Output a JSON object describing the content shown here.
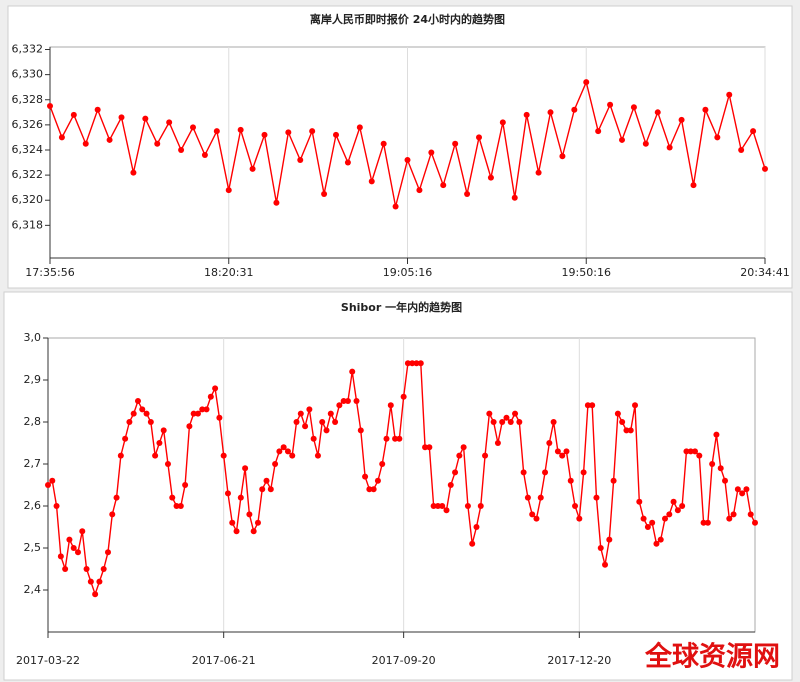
{
  "chart_data": [
    {
      "type": "line",
      "title": "离岸人民币即时报价 24小时内的趋势图",
      "categories": [
        "17:35:56",
        null,
        null,
        null,
        null,
        null,
        null,
        null,
        null,
        null,
        null,
        null,
        null,
        null,
        null,
        "18:20:31",
        null,
        null,
        null,
        null,
        null,
        null,
        null,
        null,
        null,
        null,
        null,
        null,
        null,
        null,
        "19:05:16",
        null,
        null,
        null,
        null,
        null,
        null,
        null,
        null,
        null,
        null,
        null,
        null,
        null,
        null,
        "19:50:16",
        null,
        null,
        null,
        null,
        null,
        null,
        null,
        null,
        null,
        null,
        null,
        null,
        null,
        null,
        "20:34:41"
      ],
      "series": [
        {
          "color": "#ff0000",
          "values": [
            6.3275,
            6.325,
            6.3268,
            6.3245,
            6.3272,
            6.3248,
            6.3266,
            6.3222,
            6.3265,
            6.3245,
            6.3262,
            6.324,
            6.3258,
            6.3236,
            6.3255,
            6.3208,
            6.3256,
            6.3225,
            6.3252,
            6.3198,
            6.3254,
            6.3232,
            6.3255,
            6.3205,
            6.3252,
            6.323,
            6.3258,
            6.3215,
            6.3245,
            6.3195,
            6.3232,
            6.3208,
            6.3238,
            6.3212,
            6.3245,
            6.3205,
            6.325,
            6.3218,
            6.3262,
            6.3202,
            6.3268,
            6.3222,
            6.327,
            6.3235,
            6.3272,
            6.3294,
            6.3255,
            6.3276,
            6.3248,
            6.3274,
            6.3245,
            6.327,
            6.3242,
            6.3264,
            6.3212,
            6.3272,
            6.325,
            6.3284,
            6.324,
            6.3255,
            6.3225
          ]
        }
      ],
      "ylim": [
        6.3154,
        6.3322
      ],
      "yticks": [
        {
          "value": 6.318,
          "label": "6,318"
        },
        {
          "value": 6.32,
          "label": "6,320"
        },
        {
          "value": 6.322,
          "label": "6,322"
        },
        {
          "value": 6.324,
          "label": "6,324"
        },
        {
          "value": 6.326,
          "label": "6,326"
        },
        {
          "value": 6.328,
          "label": "6,328"
        },
        {
          "value": 6.33,
          "label": "6,330"
        },
        {
          "value": 6.332,
          "label": "6,332"
        }
      ],
      "grid": "x"
    },
    {
      "type": "line",
      "title": "Shibor 一年内的趋势图",
      "categories": [
        "2017-03-22",
        null,
        null,
        null,
        null,
        null,
        null,
        null,
        null,
        null,
        null,
        null,
        null,
        null,
        null,
        null,
        null,
        null,
        null,
        null,
        null,
        null,
        null,
        null,
        null,
        null,
        null,
        null,
        null,
        null,
        null,
        null,
        null,
        null,
        null,
        null,
        null,
        null,
        null,
        null,
        null,
        "2017-06-21",
        null,
        null,
        null,
        null,
        null,
        null,
        null,
        null,
        null,
        null,
        null,
        null,
        null,
        null,
        null,
        null,
        null,
        null,
        null,
        null,
        null,
        null,
        null,
        null,
        null,
        null,
        null,
        null,
        null,
        null,
        null,
        null,
        null,
        null,
        null,
        null,
        null,
        null,
        null,
        null,
        null,
        "2017-09-20",
        null,
        null,
        null,
        null,
        null,
        null,
        null,
        null,
        null,
        null,
        null,
        null,
        null,
        null,
        null,
        null,
        null,
        null,
        null,
        null,
        null,
        null,
        null,
        null,
        null,
        null,
        null,
        null,
        null,
        null,
        null,
        null,
        null,
        null,
        null,
        null,
        null,
        null,
        null,
        null,
        "2017-12-20",
        null,
        null,
        null,
        null,
        null,
        null,
        null,
        null,
        null,
        null,
        null,
        null,
        null,
        null,
        null,
        null,
        null,
        null,
        null,
        null,
        null,
        null,
        null,
        null,
        null,
        null,
        null,
        null,
        null,
        null,
        null,
        null,
        null,
        null,
        null,
        null,
        null,
        null,
        null,
        null,
        null
      ],
      "series": [
        {
          "color": "#ff0000",
          "values": [
            2.65,
            2.66,
            2.6,
            2.48,
            2.45,
            2.52,
            2.5,
            2.49,
            2.54,
            2.45,
            2.42,
            2.39,
            2.42,
            2.45,
            2.49,
            2.58,
            2.62,
            2.72,
            2.76,
            2.8,
            2.82,
            2.85,
            2.83,
            2.82,
            2.8,
            2.72,
            2.75,
            2.78,
            2.7,
            2.62,
            2.6,
            2.6,
            2.65,
            2.79,
            2.82,
            2.82,
            2.83,
            2.83,
            2.86,
            2.88,
            2.81,
            2.72,
            2.63,
            2.56,
            2.54,
            2.62,
            2.69,
            2.58,
            2.54,
            2.56,
            2.64,
            2.66,
            2.64,
            2.7,
            2.73,
            2.74,
            2.73,
            2.72,
            2.8,
            2.82,
            2.79,
            2.83,
            2.76,
            2.72,
            2.8,
            2.78,
            2.82,
            2.8,
            2.84,
            2.85,
            2.85,
            2.92,
            2.85,
            2.78,
            2.67,
            2.64,
            2.64,
            2.66,
            2.7,
            2.76,
            2.84,
            2.76,
            2.76,
            2.86,
            2.94,
            2.94,
            2.94,
            2.94,
            2.74,
            2.74,
            2.6,
            2.6,
            2.6,
            2.59,
            2.65,
            2.68,
            2.72,
            2.74,
            2.6,
            2.51,
            2.55,
            2.6,
            2.72,
            2.82,
            2.8,
            2.75,
            2.8,
            2.81,
            2.8,
            2.82,
            2.8,
            2.68,
            2.62,
            2.58,
            2.57,
            2.62,
            2.68,
            2.75,
            2.8,
            2.73,
            2.72,
            2.73,
            2.66,
            2.6,
            2.57,
            2.68,
            2.84,
            2.84,
            2.62,
            2.5,
            2.46,
            2.52,
            2.66,
            2.82,
            2.8,
            2.78,
            2.78,
            2.84,
            2.61,
            2.57,
            2.55,
            2.56,
            2.51,
            2.52,
            2.57,
            2.58,
            2.61,
            2.59,
            2.6,
            2.73,
            2.73,
            2.73,
            2.72,
            2.56,
            2.56,
            2.7,
            2.77,
            2.69,
            2.66,
            2.57,
            2.58,
            2.64,
            2.63,
            2.64,
            2.58,
            2.56
          ]
        }
      ],
      "ylim": [
        2.3,
        3.0
      ],
      "yticks": [
        {
          "value": 2.4,
          "label": "2,4"
        },
        {
          "value": 2.5,
          "label": "2,5"
        },
        {
          "value": 2.6,
          "label": "2,6"
        },
        {
          "value": 2.7,
          "label": "2,7"
        },
        {
          "value": 2.8,
          "label": "2,8"
        },
        {
          "value": 2.9,
          "label": "2,9"
        },
        {
          "value": 3.0,
          "label": "3,0"
        }
      ],
      "grid": "x"
    }
  ],
  "watermark": "全球资源网"
}
